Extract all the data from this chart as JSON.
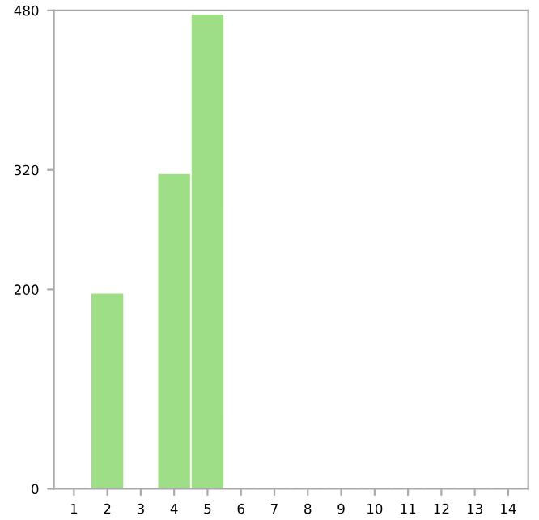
{
  "chart_data": {
    "type": "bar",
    "categories": [
      "1",
      "2",
      "3",
      "4",
      "5",
      "6",
      "7",
      "8",
      "9",
      "10",
      "11",
      "12",
      "13",
      "14"
    ],
    "values": [
      0,
      195,
      0,
      315,
      475,
      0,
      0,
      0,
      0,
      0,
      0,
      0,
      0,
      0
    ],
    "color": "#9ede86",
    "ylim": [
      0,
      480
    ],
    "yticks": [
      0,
      200,
      320,
      480
    ],
    "grid": false
  }
}
